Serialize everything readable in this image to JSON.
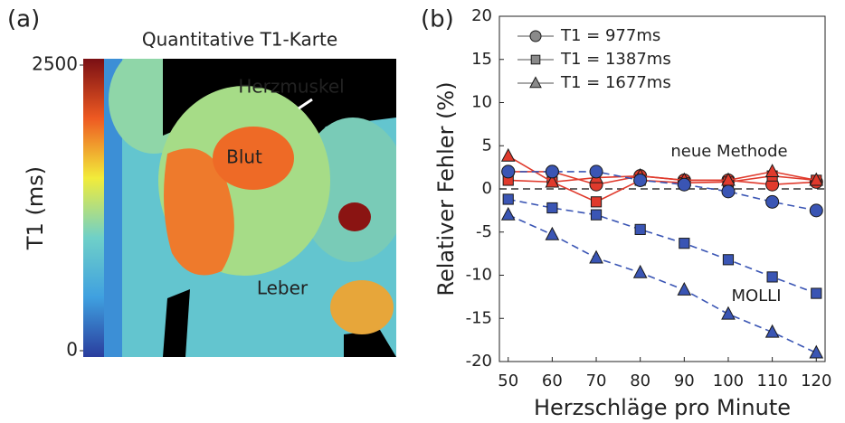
{
  "chart_data": [
    {
      "type": "colorbar",
      "panel_label": "(a)",
      "title": "Quantitative T1-Karte",
      "ylabel": "T1 (ms)",
      "ylim": [
        0,
        2500
      ],
      "yticks": [
        0,
        2500
      ],
      "annotations": [
        "Herzmuskel",
        "Blut",
        "Leber"
      ]
    },
    {
      "type": "line",
      "panel_label": "(b)",
      "xlabel": "Herzschläge pro Minute",
      "ylabel": "Relativer Fehler (%)",
      "x": [
        50,
        60,
        70,
        80,
        90,
        100,
        110,
        120
      ],
      "xlim": [
        48,
        122
      ],
      "xticks": [
        50,
        60,
        70,
        80,
        90,
        100,
        110,
        120
      ],
      "ylim": [
        -20,
        20
      ],
      "yticks": [
        -20,
        -15,
        -10,
        -5,
        0,
        5,
        10,
        15,
        20
      ],
      "reference_line": 0,
      "legend": [
        {
          "name": "T1 = 977ms",
          "marker": "circle"
        },
        {
          "name": "T1 = 1387ms",
          "marker": "square"
        },
        {
          "name": "T1 = 1677ms",
          "marker": "triangle"
        }
      ],
      "legend_color": "#8a8a8a",
      "series": [
        {
          "marker": "circle",
          "color": "#e03a2c",
          "dashed": false,
          "values": [
            2.0,
            2.0,
            0.5,
            1.5,
            1.0,
            1.0,
            0.5,
            0.8
          ]
        },
        {
          "marker": "square",
          "color": "#e03a2c",
          "dashed": false,
          "values": [
            1.0,
            0.8,
            -1.5,
            1.0,
            0.7,
            0.8,
            1.5,
            1.0
          ]
        },
        {
          "marker": "triangle",
          "color": "#e03a2c",
          "dashed": false,
          "values": [
            3.8,
            0.8,
            1.3,
            1.5,
            1.0,
            1.0,
            2.0,
            1.0
          ]
        },
        {
          "marker": "circle",
          "color": "#3a55b4",
          "dashed": true,
          "values": [
            2.0,
            2.0,
            2.0,
            1.0,
            0.5,
            -0.3,
            -1.5,
            -2.5
          ]
        },
        {
          "marker": "square",
          "color": "#3a55b4",
          "dashed": true,
          "values": [
            -1.2,
            -2.2,
            -3.0,
            -4.7,
            -6.3,
            -8.2,
            -10.2,
            -12.1
          ]
        },
        {
          "marker": "triangle",
          "color": "#3a55b4",
          "dashed": true,
          "values": [
            -3.0,
            -5.3,
            -8.0,
            -9.7,
            -11.7,
            -14.5,
            -16.6,
            -19.0
          ]
        }
      ],
      "text_annotations": [
        {
          "text": "neue Methode",
          "color": "#e03a2c"
        },
        {
          "text": "MOLLI",
          "color": "#3a55b4"
        }
      ]
    }
  ]
}
